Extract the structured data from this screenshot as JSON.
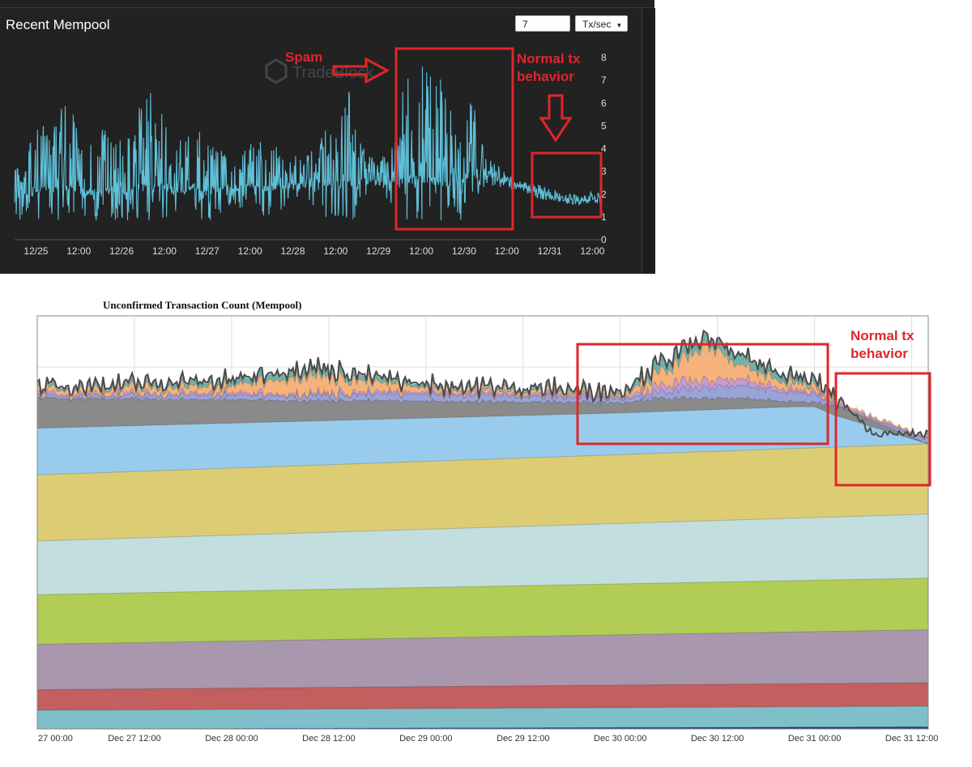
{
  "top_panel": {
    "title": "Recent Mempool",
    "range_select": {
      "selected": "7 Days"
    },
    "unit_select": {
      "selected": "Tx/sec"
    },
    "watermark": "TradeBlock"
  },
  "bottom_panel": {
    "title": "Unconfirmed Transaction Count (Mempool)"
  },
  "annotations": {
    "spam": "Spam",
    "normal_top": [
      "Normal tx",
      "behavior"
    ],
    "normal_bottom": [
      "Normal tx",
      "behavior"
    ]
  },
  "colors": {
    "annotation_red": "#e0262b",
    "top_line": "#5fc0d9",
    "top_bg": "#222222"
  },
  "chart_data": [
    {
      "type": "line",
      "title": "Recent Mempool",
      "xlabel": "",
      "ylabel": "",
      "x_ticks": [
        "12/25",
        "12:00",
        "12/26",
        "12:00",
        "12/27",
        "12:00",
        "12/28",
        "12:00",
        "12/29",
        "12:00",
        "12/30",
        "12:00",
        "12/31",
        "12:00"
      ],
      "y_ticks": [
        "0",
        "1",
        "2",
        "3",
        "4",
        "5",
        "6",
        "7",
        "8"
      ],
      "ylim": [
        0,
        8
      ],
      "x_range_days": [
        24.75,
        31.6
      ],
      "grid": false,
      "series": [
        {
          "color": "#5fc0d9",
          "profile": [
            [
              24.75,
              1.8,
              1.0,
              0.9
            ],
            [
              24.9,
              2.0,
              1.6,
              0.9
            ],
            [
              25.0,
              2.2,
              1.8,
              0.9
            ],
            [
              25.2,
              2.2,
              2.2,
              0.9
            ],
            [
              25.4,
              2.2,
              2.6,
              0.9
            ],
            [
              25.5,
              2.2,
              1.6,
              0.9
            ],
            [
              25.7,
              2.0,
              1.3,
              0.85
            ],
            [
              25.9,
              2.2,
              2.4,
              0.9
            ],
            [
              26.0,
              2.0,
              1.6,
              0.9
            ],
            [
              26.2,
              2.3,
              2.6,
              0.85
            ],
            [
              26.4,
              2.3,
              2.6,
              0.85
            ],
            [
              26.55,
              2.3,
              1.5,
              0.9
            ],
            [
              26.7,
              2.0,
              1.6,
              0.85
            ],
            [
              26.85,
              2.3,
              2.2,
              0.85
            ],
            [
              27.0,
              2.1,
              1.4,
              0.9
            ],
            [
              27.2,
              2.3,
              1.0,
              0.9
            ],
            [
              27.3,
              2.2,
              0.6,
              0.95
            ],
            [
              27.45,
              2.4,
              1.2,
              0.9
            ],
            [
              27.6,
              2.4,
              1.4,
              0.9
            ],
            [
              27.75,
              2.2,
              1.3,
              0.9
            ],
            [
              27.9,
              2.3,
              1.0,
              0.9
            ],
            [
              28.05,
              2.4,
              0.8,
              0.95
            ],
            [
              28.2,
              2.4,
              1.0,
              0.9
            ],
            [
              28.35,
              2.5,
              1.4,
              0.9
            ],
            [
              28.5,
              2.4,
              1.8,
              0.9
            ],
            [
              28.65,
              2.5,
              2.6,
              0.85
            ],
            [
              28.75,
              2.3,
              1.6,
              0.9
            ],
            [
              28.85,
              2.6,
              0.8,
              0.95
            ],
            [
              29.0,
              2.5,
              0.6,
              0.95
            ],
            [
              29.1,
              2.4,
              1.0,
              0.9
            ],
            [
              29.2,
              2.5,
              1.5,
              0.85
            ],
            [
              29.3,
              2.6,
              3.0,
              0.8
            ],
            [
              29.45,
              2.7,
              3.4,
              0.75
            ],
            [
              29.6,
              2.6,
              3.5,
              0.75
            ],
            [
              29.75,
              2.5,
              3.0,
              0.8
            ],
            [
              29.85,
              2.5,
              2.6,
              0.85
            ],
            [
              29.95,
              2.6,
              2.0,
              0.9
            ],
            [
              30.05,
              2.8,
              2.6,
              0.9
            ],
            [
              30.1,
              3.4,
              2.0,
              0.95
            ],
            [
              30.2,
              3.0,
              0.8,
              1.0
            ],
            [
              30.3,
              2.9,
              0.6,
              1.0
            ],
            [
              30.45,
              2.6,
              0.3,
              1.0
            ],
            [
              30.6,
              2.3,
              0.2,
              1.0
            ],
            [
              30.75,
              2.2,
              0.25,
              1.0
            ],
            [
              30.9,
              2.0,
              0.25,
              1.0
            ],
            [
              31.05,
              1.9,
              0.2,
              1.0
            ],
            [
              31.2,
              1.7,
              0.2,
              1.0
            ],
            [
              31.35,
              1.65,
              0.2,
              1.0
            ],
            [
              31.5,
              1.8,
              0.2,
              1.0
            ],
            [
              31.6,
              1.8,
              0.2,
              1.0
            ]
          ]
        }
      ]
    },
    {
      "type": "area",
      "title": "Unconfirmed Transaction Count (Mempool)",
      "xlabel": "",
      "ylabel": "",
      "x_ticks": [
        "27 00:00",
        "Dec 27 12:00",
        "Dec 28 00:00",
        "Dec 28 12:00",
        "Dec 29 00:00",
        "Dec 29 12:00",
        "Dec 30 00:00",
        "Dec 30 12:00",
        "Dec 31 00:00",
        "Dec 31 12:00"
      ],
      "x_range_days": [
        27.0,
        31.585
      ],
      "y_range": [
        0,
        1
      ],
      "grid": true,
      "series": [
        {
          "color": "#1b3f8a",
          "top": [
            [
              27.0,
              0.0
            ],
            [
              31.585,
              0.005
            ]
          ]
        },
        {
          "color": "#7ebfca",
          "top": [
            [
              27.0,
              0.045
            ],
            [
              31.585,
              0.055
            ]
          ]
        },
        {
          "color": "#c35f5f",
          "top": [
            [
              27.0,
              0.095
            ],
            [
              31.585,
              0.112
            ]
          ]
        },
        {
          "color": "#a897ad",
          "top": [
            [
              27.0,
              0.205
            ],
            [
              31.585,
              0.24
            ]
          ]
        },
        {
          "color": "#b1cd55",
          "top": [
            [
              27.0,
              0.325
            ],
            [
              31.585,
              0.365
            ]
          ]
        },
        {
          "color": "#c2dede",
          "top": [
            [
              27.0,
              0.455
            ],
            [
              31.585,
              0.52
            ]
          ]
        },
        {
          "color": "#dccd75",
          "top": [
            [
              27.0,
              0.615
            ],
            [
              31.585,
              0.69
            ]
          ]
        },
        {
          "color": "#99ccec",
          "top": [
            [
              27.0,
              0.728
            ],
            [
              30.0,
              0.765
            ],
            [
              30.9,
              0.78
            ],
            [
              31.0,
              0.78
            ],
            [
              31.1,
              0.76
            ],
            [
              31.585,
              0.69
            ]
          ]
        },
        {
          "color": "#8a8a8a",
          "top": [
            [
              27.0,
              0.8
            ],
            [
              30.0,
              0.79
            ],
            [
              30.2,
              0.8
            ],
            [
              30.6,
              0.8
            ],
            [
              31.0,
              0.79
            ],
            [
              31.12,
              0.78
            ],
            [
              31.585,
              0.69
            ]
          ]
        },
        {
          "color": "#9aa3d8",
          "top": [
            [
              27.0,
              0.805
            ],
            [
              29.0,
              0.81
            ],
            [
              30.0,
              0.8
            ],
            [
              30.3,
              0.82
            ],
            [
              30.6,
              0.83
            ],
            [
              31.0,
              0.81
            ],
            [
              31.12,
              0.78
            ],
            [
              31.585,
              0.7
            ]
          ]
        },
        {
          "color": "#c79ad2",
          "top": [
            [
              27.0,
              0.81
            ],
            [
              29.0,
              0.815
            ],
            [
              30.0,
              0.805
            ],
            [
              30.3,
              0.84
            ],
            [
              30.6,
              0.845
            ],
            [
              31.0,
              0.815
            ],
            [
              31.12,
              0.785
            ],
            [
              31.585,
              0.702
            ]
          ]
        },
        {
          "color": "#f5b27a",
          "top": [
            [
              27.0,
              0.82
            ],
            [
              28.0,
              0.83
            ],
            [
              28.4,
              0.86
            ],
            [
              28.7,
              0.84
            ],
            [
              29.0,
              0.825
            ],
            [
              30.0,
              0.81
            ],
            [
              30.2,
              0.86
            ],
            [
              30.35,
              0.9
            ],
            [
              30.45,
              0.93
            ],
            [
              30.6,
              0.88
            ],
            [
              30.8,
              0.85
            ],
            [
              31.0,
              0.83
            ],
            [
              31.12,
              0.79
            ],
            [
              31.585,
              0.705
            ]
          ]
        },
        {
          "color": "#6fb3ad",
          "top": [
            [
              27.0,
              0.825
            ],
            [
              28.0,
              0.84
            ],
            [
              28.4,
              0.875
            ],
            [
              28.7,
              0.85
            ],
            [
              29.0,
              0.83
            ],
            [
              30.0,
              0.815
            ],
            [
              30.2,
              0.88
            ],
            [
              30.35,
              0.92
            ],
            [
              30.45,
              0.945
            ],
            [
              30.6,
              0.9
            ],
            [
              30.8,
              0.865
            ],
            [
              31.0,
              0.84
            ],
            [
              31.12,
              0.795
            ],
            [
              31.3,
              0.71
            ],
            [
              31.585,
              0.71
            ]
          ]
        }
      ]
    }
  ]
}
